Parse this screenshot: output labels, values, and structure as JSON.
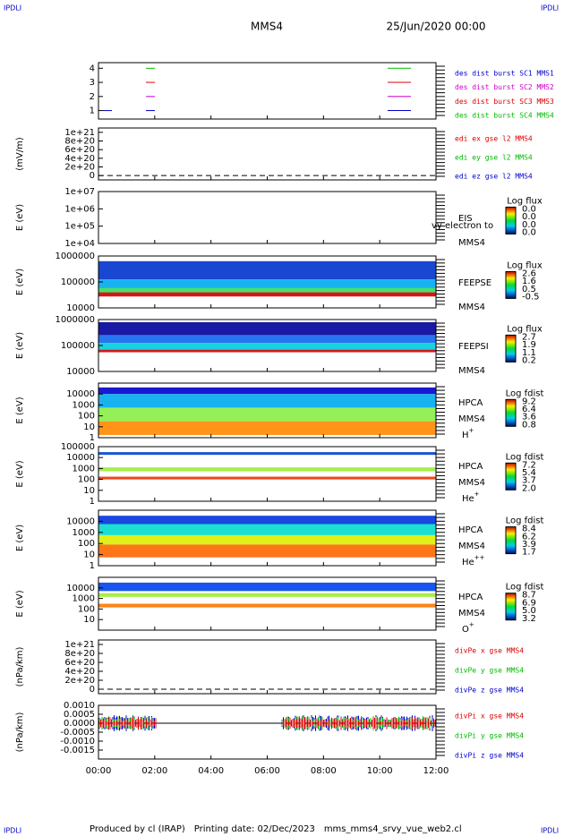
{
  "header": {
    "corner": "IPDLI",
    "title": "MMS4",
    "date": "25/Jun/2020 00:00"
  },
  "x_axis": {
    "labels": [
      "00:00",
      "02:00",
      "04:00",
      "06:00",
      "08:00",
      "10:00",
      "12:00"
    ]
  },
  "chart_data": [
    {
      "type": "line",
      "ylim": [
        0.4,
        4.4
      ],
      "yticks": [
        1,
        2,
        3,
        4
      ],
      "legend": [
        {
          "text": "des dist burst SC1 MMS1",
          "color": "#0000cc"
        },
        {
          "text": "des dist burst SC2 MMS2",
          "color": "#cc00cc"
        },
        {
          "text": "des dist burst SC3 MMS3",
          "color": "#dd0000"
        },
        {
          "text": "des dist burst SC4 MMS4",
          "color": "#00bb00"
        }
      ]
    },
    {
      "type": "line",
      "ylabel": "(mV/m)",
      "ylim": [
        -1e+20,
        1.1e+21
      ],
      "yticks": [
        {
          "value": 1e+21,
          "label": "1e+21"
        },
        {
          "value": 8e+20,
          "label": "8e+20"
        },
        {
          "value": 6e+20,
          "label": "6e+20"
        },
        {
          "value": 4e+20,
          "label": "4e+20"
        },
        {
          "value": 2e+20,
          "label": "2e+20"
        },
        0
      ],
      "legend": [
        {
          "text": "edi ex gse l2 MMS4",
          "color": "#dd0000"
        },
        {
          "text": "edi ey gse l2 MMS4",
          "color": "#00bb00"
        },
        {
          "text": "edi ez gse l2 MMS4",
          "color": "#0000cc"
        }
      ]
    },
    {
      "type": "spectrogram",
      "ylabel": "E (eV)",
      "log": true,
      "ylim": [
        10000,
        10000000
      ],
      "yticks": [
        {
          "value": 10000000,
          "label": "1e+07"
        },
        {
          "value": 1000000,
          "label": "1e+06"
        },
        {
          "value": 100000,
          "label": "1e+05"
        },
        {
          "value": 10000,
          "label": "1e+04"
        }
      ],
      "instrument": "EIS",
      "spacecraft": "MMS4",
      "note": "vy electron to",
      "colorbar_title": "Log flux",
      "colorbar_labels": [
        "0.0",
        "0.0",
        "0.0",
        "0.0"
      ]
    },
    {
      "type": "spectrogram",
      "ylabel": "E (eV)",
      "log": true,
      "ylim": [
        10000,
        1000000
      ],
      "yticks": [
        1000000,
        100000,
        10000
      ],
      "instrument": "FEEPSE",
      "spacecraft": "MMS4",
      "colorbar_title": "Log flux",
      "colorbar_labels": [
        "2.6",
        "1.6",
        "0.5",
        "-0.5"
      ]
    },
    {
      "type": "spectrogram",
      "ylabel": "E (eV)",
      "log": true,
      "ylim": [
        10000,
        1000000
      ],
      "yticks": [
        1000000,
        100000,
        10000
      ],
      "instrument": "FEEPSI",
      "spacecraft": "MMS4",
      "colorbar_title": "Log flux",
      "colorbar_labels": [
        "2.7",
        "1.9",
        "1.1",
        "0.2"
      ]
    },
    {
      "type": "spectrogram",
      "ylabel": "E (eV)",
      "log": true,
      "ylim": [
        1,
        100000
      ],
      "yticks": [
        10000,
        1000,
        100,
        10,
        1
      ],
      "instrument": "HPCA",
      "spacecraft": "MMS4",
      "species": [
        "H",
        "+"
      ],
      "colorbar_title": "Log fdist",
      "colorbar_labels": [
        "9.2",
        "6.4",
        "3.6",
        "0.8"
      ]
    },
    {
      "type": "spectrogram",
      "ylabel": "E (eV)",
      "log": true,
      "ylim": [
        1,
        100000
      ],
      "yticks": [
        100000,
        10000,
        1000,
        100,
        10,
        1
      ],
      "instrument": "HPCA",
      "spacecraft": "MMS4",
      "species": [
        "He",
        "+"
      ],
      "colorbar_title": "Log fdist",
      "colorbar_labels": [
        "7.2",
        "5.4",
        "3.7",
        "2.0"
      ]
    },
    {
      "type": "spectrogram",
      "ylabel": "E (eV)",
      "log": true,
      "ylim": [
        1,
        100000
      ],
      "yticks": [
        10000,
        1000,
        100,
        10,
        1
      ],
      "instrument": "HPCA",
      "spacecraft": "MMS4",
      "species": [
        "He",
        "++"
      ],
      "colorbar_title": "Log fdist",
      "colorbar_labels": [
        "8.4",
        "6.2",
        "3.9",
        "1.7"
      ]
    },
    {
      "type": "spectrogram",
      "ylabel": "E (eV)",
      "log": true,
      "ylim": [
        1,
        100000
      ],
      "yticks": [
        10000,
        1000,
        100,
        10
      ],
      "instrument": "HPCA",
      "spacecraft": "MMS4",
      "species": [
        "O",
        "+"
      ],
      "colorbar_title": "Log fdist",
      "colorbar_labels": [
        "8.7",
        "6.9",
        "5.0",
        "3.2"
      ]
    },
    {
      "type": "line",
      "ylabel": "(nPa/km)",
      "ylim": [
        -1e+20,
        1.1e+21
      ],
      "yticks": [
        {
          "value": 1e+21,
          "label": "1e+21"
        },
        {
          "value": 8e+20,
          "label": "8e+20"
        },
        {
          "value": 6e+20,
          "label": "6e+20"
        },
        {
          "value": 4e+20,
          "label": "4e+20"
        },
        {
          "value": 2e+20,
          "label": "2e+20"
        },
        0
      ],
      "legend": [
        {
          "text": "divPe x gse MMS4",
          "color": "#dd0000"
        },
        {
          "text": "divPe y gse MMS4",
          "color": "#00bb00"
        },
        {
          "text": "divPe z gse MMS4",
          "color": "#0000cc"
        }
      ]
    },
    {
      "type": "line",
      "ylabel": "(nPa/km)",
      "ylim": [
        -0.002,
        0.001
      ],
      "yticks": [
        {
          "value": 0.001,
          "label": "0.0010"
        },
        {
          "value": 0.0005,
          "label": "0.0005"
        },
        {
          "value": 0,
          "label": "0.0000"
        },
        {
          "value": -0.0005,
          "label": "-0.0005"
        },
        {
          "value": -0.001,
          "label": "-0.0010"
        },
        {
          "value": -0.0015,
          "label": "-0.0015"
        }
      ],
      "legend": [
        {
          "text": "divPi x gse MMS4",
          "color": "#dd0000"
        },
        {
          "text": "divPi y gse MMS4",
          "color": "#00bb00"
        },
        {
          "text": "divPi z gse MMS4",
          "color": "#0000cc"
        }
      ]
    }
  ],
  "footer": {
    "producer": "Produced by cl (IRAP)",
    "printed": "Printing date: 02/Dec/2023",
    "file": "mms_mms4_srvy_vue_web2.cl"
  }
}
